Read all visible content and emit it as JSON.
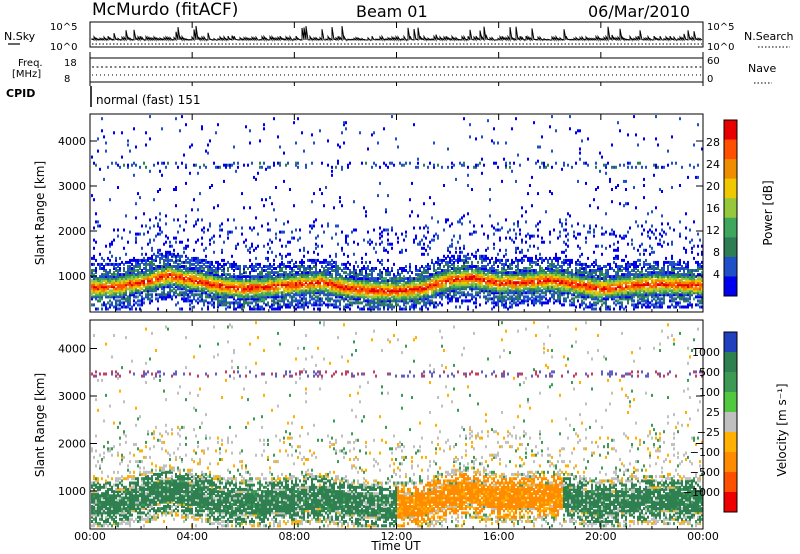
{
  "header": {
    "radar": "McMurdo (fitACF)",
    "beam": "Beam 01",
    "date": "06/Mar/2010"
  },
  "panels": {
    "nsky": {
      "label": "N.Sky",
      "ticks": [
        "10^5",
        "10^0"
      ],
      "right_ticks": [
        "10^5",
        "10^0"
      ],
      "right_label": "N.Search"
    },
    "freq": {
      "label_top": "Freq.",
      "label_bottom": "[MHz]",
      "ticks": [
        "18",
        "8"
      ],
      "right_ticks": [
        "60",
        "0"
      ],
      "right_label": "Nave"
    },
    "cpid": {
      "label": "CPID",
      "value": "normal (fast) 151"
    }
  },
  "chart_data": [
    {
      "type": "heatmap",
      "name": "power",
      "ylabel": "Slant Range [km]",
      "ylim": [
        200,
        4600
      ],
      "yticks": [
        1000,
        2000,
        3000,
        4000
      ],
      "xlim": [
        0,
        24
      ],
      "colorbar": {
        "label": "Power [dB]",
        "range": [
          0,
          32
        ],
        "tick_values": [
          4,
          8,
          12,
          16,
          20,
          24,
          28
        ],
        "tick_labels": [
          "4",
          "8",
          "12",
          "16",
          "20",
          "24",
          "28"
        ],
        "colors": [
          "#0000ee",
          "#2050c8",
          "#2f7d55",
          "#3fa65e",
          "#96c83c",
          "#f0c800",
          "#f08c00",
          "#ff5000",
          "#e80000"
        ]
      },
      "main_band_center_km": [
        780,
        800,
        900,
        1050,
        950,
        820,
        760,
        800,
        850,
        900,
        780,
        720,
        700,
        760,
        950,
        1000,
        880,
        900,
        950,
        850,
        750,
        820,
        860,
        850,
        820
      ],
      "band_x_hours": [
        0,
        1,
        2,
        3,
        4,
        5,
        6,
        7,
        8,
        9,
        10,
        11,
        12,
        13,
        14,
        15,
        16,
        17,
        18,
        19,
        20,
        21,
        22,
        23,
        24
      ]
    },
    {
      "type": "heatmap",
      "name": "velocity",
      "ylabel": "Slant Range [km]",
      "xlabel": "Time UT",
      "ylim": [
        200,
        4600
      ],
      "yticks": [
        1000,
        2000,
        3000,
        4000
      ],
      "xlim": [
        0,
        24
      ],
      "xtick_labels": [
        "00:00",
        "04:00",
        "08:00",
        "12:00",
        "16:00",
        "20:00",
        "00:00"
      ],
      "xtick_values": [
        0,
        4,
        8,
        12,
        16,
        20,
        24
      ],
      "colorbar": {
        "label": "Velocity [m s⁻¹]",
        "tick_labels": [
          "1000",
          "500",
          "100",
          "25",
          "−25",
          "−100",
          "−500",
          "−1000"
        ],
        "colors": [
          "#2040c0",
          "#2f8050",
          "#3c9a55",
          "#52c840",
          "#c0c0c0",
          "#ffb000",
          "#ff8c00",
          "#ff5000",
          "#ee0000"
        ]
      },
      "negative_interval_hours": [
        12,
        18.5
      ]
    }
  ]
}
